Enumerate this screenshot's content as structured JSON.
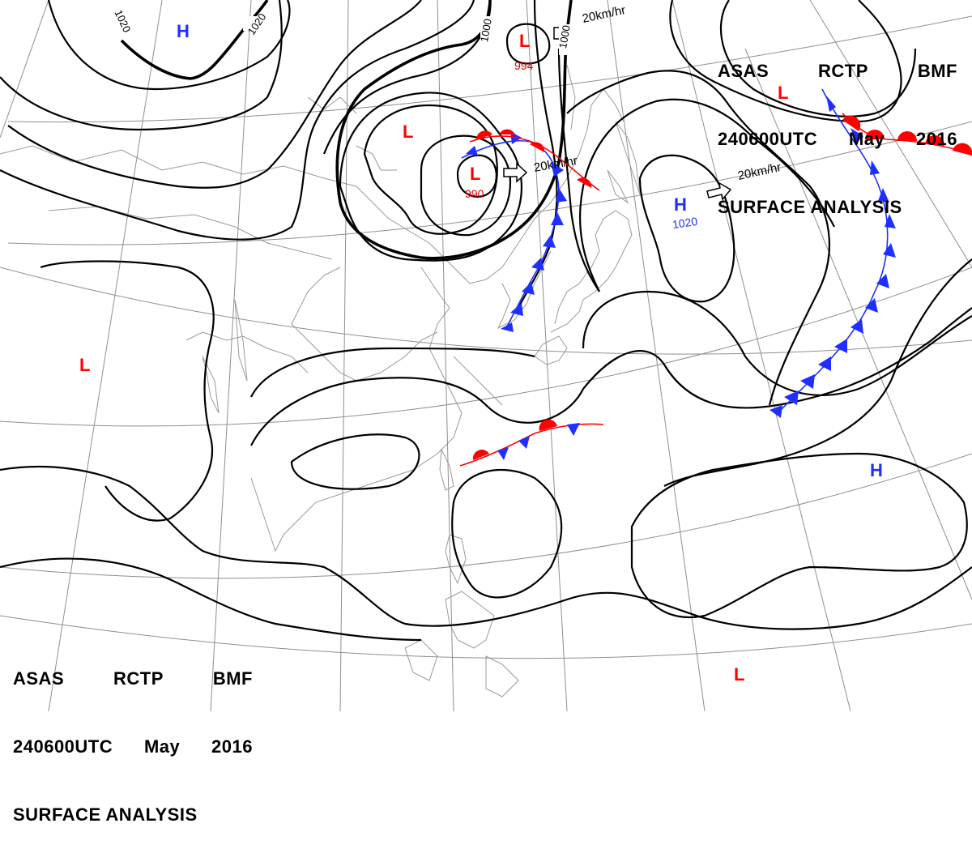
{
  "header": {
    "agency": "ASAS",
    "station": "RCTP",
    "office": "BMF",
    "valid_time": "240600UTC",
    "month": "May",
    "year": "2016",
    "title": "SURFACE ANALYSIS"
  },
  "pressure_centers": [
    {
      "type": "H",
      "value": ""
    },
    {
      "type": "L",
      "value": "994"
    },
    {
      "type": "L",
      "value": ""
    },
    {
      "type": "L",
      "value": "990"
    },
    {
      "type": "H",
      "value": "1020"
    },
    {
      "type": "L",
      "value": ""
    },
    {
      "type": "L",
      "value": ""
    },
    {
      "type": "H",
      "value": ""
    },
    {
      "type": "L",
      "value": ""
    }
  ],
  "isobar_labels": [
    "1020",
    "1020",
    "1000",
    "1000"
  ],
  "motion_vectors": [
    {
      "text": "20km/hr"
    },
    {
      "text": "20km/hr"
    },
    {
      "text": "20km/hr"
    }
  ],
  "colors": {
    "high": "#1e2fff",
    "low": "#ff0000",
    "cold_front": "#1e2fff",
    "warm_front": "#ff0000",
    "isobar": "#000000",
    "coastline": "#9a9a9a",
    "graticule": "#8f8f8f"
  }
}
